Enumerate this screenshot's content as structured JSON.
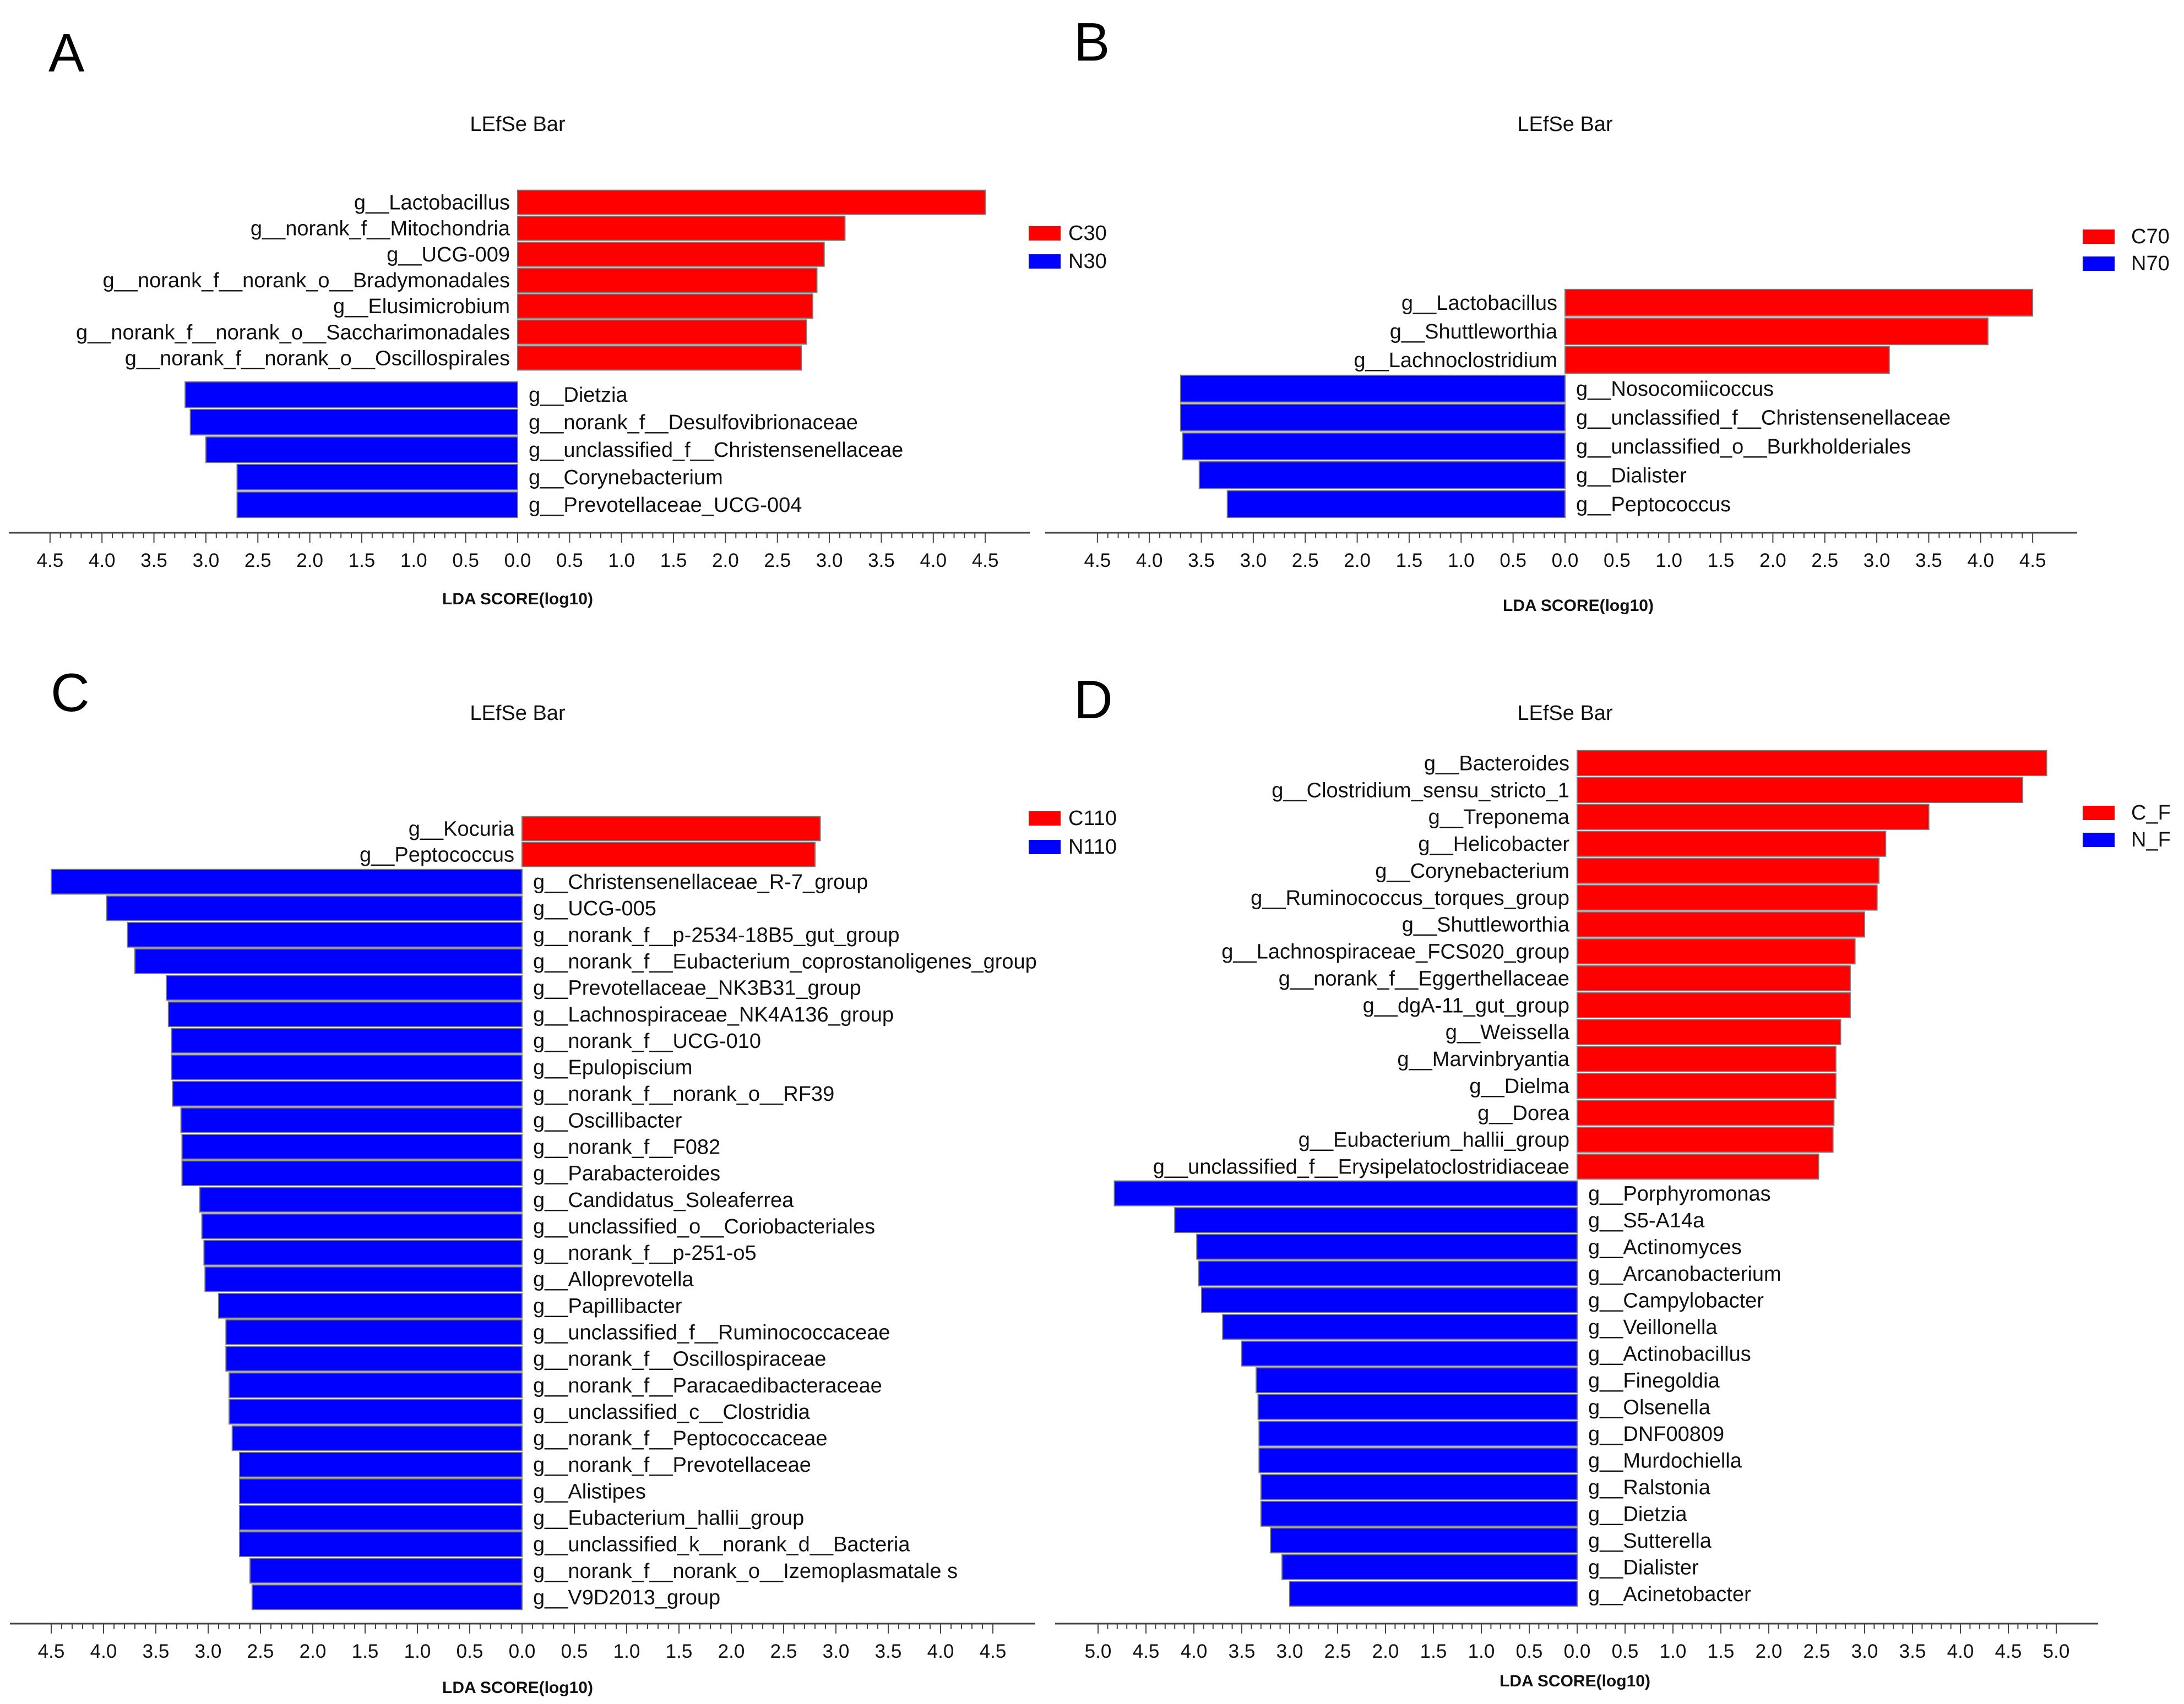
{
  "colors": {
    "enriched_case": "#ff0000",
    "enriched_control": "#0000ff",
    "bar_edge": "#7a7a7a",
    "axis": "#444444"
  },
  "chart_data": [
    {
      "type": "bar",
      "panel": "A",
      "title": "LEfSe Bar",
      "xlabel": "LDA SCORE(log10)",
      "xticks": [
        "4.5",
        "4.0",
        "3.5",
        "3.0",
        "2.5",
        "2.0",
        "1.5",
        "1.0",
        "0.5",
        "0.0",
        "0.5",
        "1.0",
        "1.5",
        "2.0",
        "2.5",
        "3.0",
        "3.5",
        "4.0",
        "4.5"
      ],
      "xlim": [
        -4.5,
        4.5
      ],
      "legend": [
        "C30",
        "N30"
      ],
      "series": [
        {
          "name": "C30",
          "categories": [
            "g__Lactobacillus",
            "g__norank_f__Mitochondria",
            "g__UCG-009",
            "g__norank_f__norank_o__Bradymonadales",
            "g__Elusimicrobium",
            "g__norank_f__norank_o__Saccharimonadales",
            "g__norank_f__norank_o__Oscillospirales"
          ],
          "values": [
            4.5,
            3.15,
            2.95,
            2.88,
            2.84,
            2.78,
            2.73
          ]
        },
        {
          "name": "N30",
          "categories": [
            "g__Dietzia",
            "g__norank_f__Desulfovibrionaceae",
            "g__unclassified_f__Christensenellaceae",
            "g__Corynebacterium",
            "g__Prevotellaceae_UCG-004"
          ],
          "values": [
            3.2,
            3.15,
            3.0,
            2.7,
            2.7
          ]
        }
      ]
    },
    {
      "type": "bar",
      "panel": "B",
      "title": "LEfSe Bar",
      "xlabel": "LDA SCORE(log10)",
      "xticks": [
        "4.5",
        "4.0",
        "3.5",
        "3.0",
        "2.5",
        "2.0",
        "1.5",
        "1.0",
        "0.5",
        "0.0",
        "0.5",
        "1.0",
        "1.5",
        "2.0",
        "2.5",
        "3.0",
        "3.5",
        "4.0",
        "4.5"
      ],
      "xlim": [
        -4.5,
        4.5
      ],
      "legend": [
        "C70",
        "N70"
      ],
      "series": [
        {
          "name": "C70",
          "categories": [
            "g__Lactobacillus",
            "g__Shuttleworthia",
            "g__Lachnoclostridium"
          ],
          "values": [
            4.5,
            4.07,
            3.12
          ]
        },
        {
          "name": "N70",
          "categories": [
            "g__Nosocomiicoccus",
            "g__unclassified_f__Christensenellaceae",
            "g__unclassified_o__Burkholderiales",
            "g__Dialister",
            "g__Peptococcus"
          ],
          "values": [
            3.7,
            3.7,
            3.68,
            3.52,
            3.25
          ]
        }
      ]
    },
    {
      "type": "bar",
      "panel": "C",
      "title": "LEfSe Bar",
      "xlabel": "LDA SCORE(log10)",
      "xticks": [
        "4.5",
        "4.0",
        "3.5",
        "3.0",
        "2.5",
        "2.0",
        "1.5",
        "1.0",
        "0.5",
        "0.0",
        "0.5",
        "1.0",
        "1.5",
        "2.0",
        "2.5",
        "3.0",
        "3.5",
        "4.0",
        "4.5"
      ],
      "xlim": [
        -4.5,
        4.5
      ],
      "legend": [
        "C110",
        "N110"
      ],
      "series": [
        {
          "name": "C110",
          "categories": [
            "g__Kocuria",
            "g__Peptococcus"
          ],
          "values": [
            2.85,
            2.8
          ]
        },
        {
          "name": "N110",
          "categories": [
            "g__Christensenellaceae_R-7_group",
            "g__UCG-005",
            "g__norank_f__p-2534-18B5_gut_group",
            "g__norank_f__Eubacterium_coprostanoligenes_group",
            "g__Prevotellaceae_NK3B31_group",
            "g__Lachnospiraceae_NK4A136_group",
            "g__norank_f__UCG-010",
            "g__Epulopiscium",
            "g__norank_f__norank_o__RF39",
            "g__Oscillibacter",
            "g__norank_f__F082",
            "g__Parabacteroides",
            "g__Candidatus_Soleaferrea",
            "g__unclassified_o__Coriobacteriales",
            "g__norank_f__p-251-o5",
            "g__Alloprevotella",
            "g__Papillibacter",
            "g__unclassified_f__Ruminococcaceae",
            "g__norank_f__Oscillospiraceae",
            "g__norank_f__Paracaedibacteraceae",
            "g__unclassified_c__Clostridia",
            "g__norank_f__Peptococcaceae",
            "g__norank_f__Prevotellaceae",
            "g__Alistipes",
            "g__Eubacterium_hallii_group",
            "g__unclassified_k__norank_d__Bacteria",
            "g__norank_f__norank_o__Izemoplasmatale s",
            "g__V9D2013_group"
          ],
          "values": [
            4.5,
            3.97,
            3.77,
            3.7,
            3.4,
            3.38,
            3.35,
            3.35,
            3.34,
            3.26,
            3.25,
            3.25,
            3.08,
            3.06,
            3.04,
            3.03,
            2.9,
            2.83,
            2.83,
            2.8,
            2.8,
            2.77,
            2.7,
            2.7,
            2.7,
            2.7,
            2.6,
            2.58
          ]
        }
      ]
    },
    {
      "type": "bar",
      "panel": "D",
      "title": "LEfSe Bar",
      "xlabel": "LDA SCORE(log10)",
      "xticks": [
        "5.0",
        "4.5",
        "4.0",
        "3.5",
        "3.0",
        "2.5",
        "2.0",
        "1.5",
        "1.0",
        "0.5",
        "0.0",
        "0.5",
        "1.0",
        "1.5",
        "2.0",
        "2.5",
        "3.0",
        "3.5",
        "4.0",
        "4.5",
        "5.0"
      ],
      "xlim": [
        -5.0,
        5.0
      ],
      "legend": [
        "C_F",
        "N_F"
      ],
      "series": [
        {
          "name": "C_F",
          "categories": [
            "g__Bacteroides",
            "g__Clostridium_sensu_stricto_1",
            "g__Treponema",
            "g__Helicobacter",
            "g__Corynebacterium",
            "g__Ruminococcus_torques_group",
            "g__Shuttleworthia",
            "g__Lachnospiraceae_FCS020_group",
            "g__norank_f__Eggerthellaceae",
            "g__dgA-11_gut_group",
            "g__Weissella",
            "g__Marvinbryantia",
            "g__Dielma",
            "g__Dorea",
            "g__Eubacterium_hallii_group",
            "g__unclassified_f__Erysipelatoclostridiaceae"
          ],
          "values": [
            4.9,
            4.65,
            3.67,
            3.22,
            3.15,
            3.13,
            3.0,
            2.9,
            2.85,
            2.85,
            2.75,
            2.7,
            2.7,
            2.68,
            2.67,
            2.52
          ]
        },
        {
          "name": "N_F",
          "categories": [
            "g__Porphyromonas",
            "g__S5-A14a",
            "g__Actinomyces",
            "g__Arcanobacterium",
            "g__Campylobacter",
            "g__Veillonella",
            "g__Actinobacillus",
            "g__Finegoldia",
            "g__Olsenella",
            "g__DNF00809",
            "g__Murdochiella",
            "g__Ralstonia",
            "g__Dietzia",
            "g__Sutterella",
            "g__Dialister",
            "g__Acinetobacter"
          ],
          "values": [
            4.83,
            4.2,
            3.97,
            3.95,
            3.92,
            3.7,
            3.5,
            3.35,
            3.33,
            3.32,
            3.32,
            3.3,
            3.3,
            3.2,
            3.08,
            3.0
          ]
        }
      ]
    }
  ]
}
